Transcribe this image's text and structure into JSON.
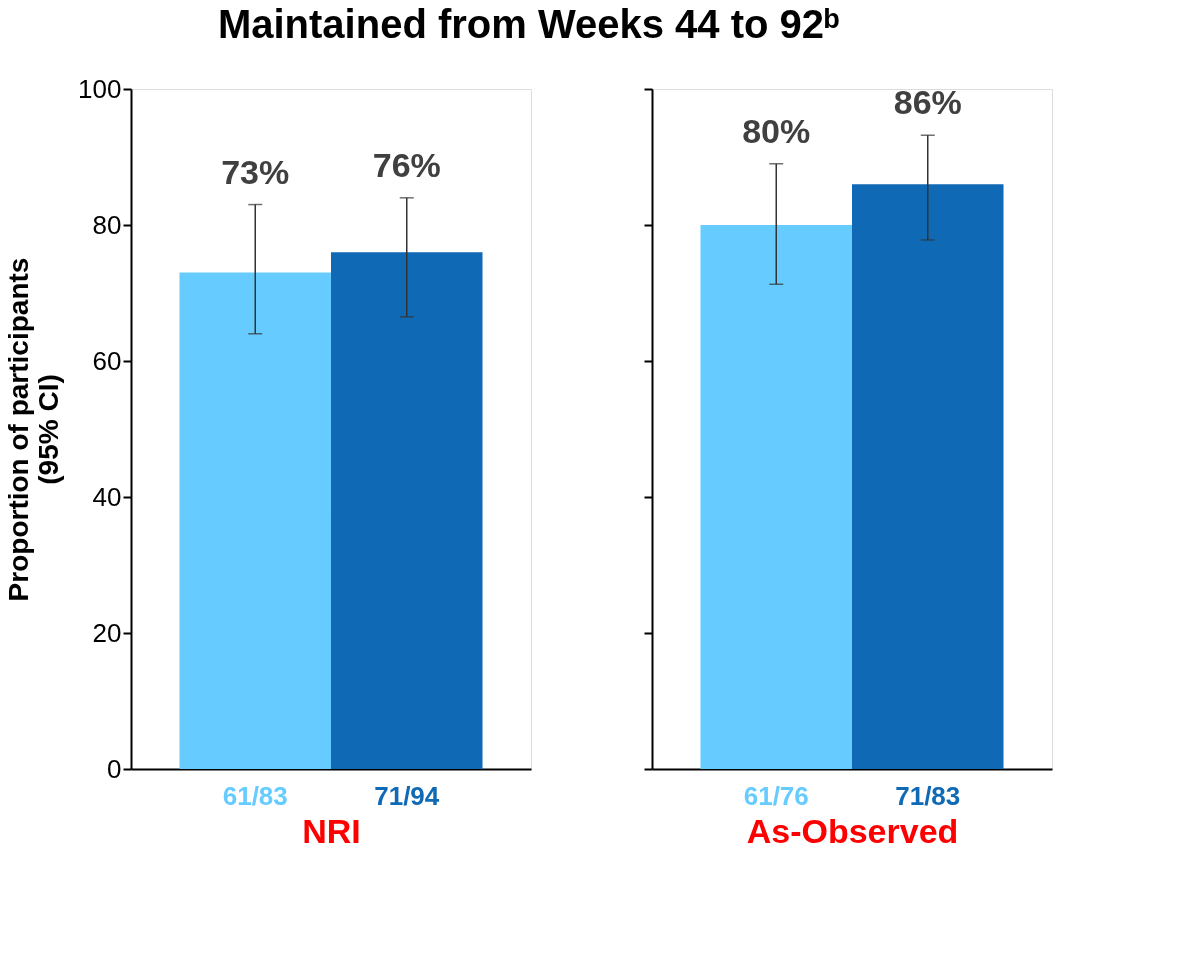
{
  "chart_data": [
    {
      "type": "bar",
      "title": "Maintained from Weeks 44 to 92ᵇ",
      "ylabel": "Proportion of participants\n(95% CI)",
      "xlabel": "NRI",
      "categories": [
        "61/83",
        "71/94"
      ],
      "values": [
        73,
        76
      ],
      "colors": [
        "#66ccff",
        "#0f69b4"
      ],
      "errors": [
        [
          64,
          83
        ],
        [
          66.5,
          84
        ]
      ],
      "value_labels": [
        "73%",
        "76%"
      ],
      "ylim": [
        0,
        100
      ],
      "yticks": [
        0,
        20,
        40,
        60,
        80,
        100
      ]
    },
    {
      "type": "bar",
      "xlabel": "As-Observed",
      "categories": [
        "61/76",
        "71/83"
      ],
      "values": [
        80,
        86
      ],
      "colors": [
        "#66ccff",
        "#0f69b4"
      ],
      "errors": [
        [
          71.3,
          89
        ],
        [
          77.8,
          93.2
        ]
      ],
      "value_labels": [
        "80%",
        "86%"
      ],
      "ylim": [
        0,
        100
      ],
      "yticks": [
        0,
        20,
        40,
        60,
        80,
        100
      ],
      "tick_labels": "x"
    }
  ]
}
